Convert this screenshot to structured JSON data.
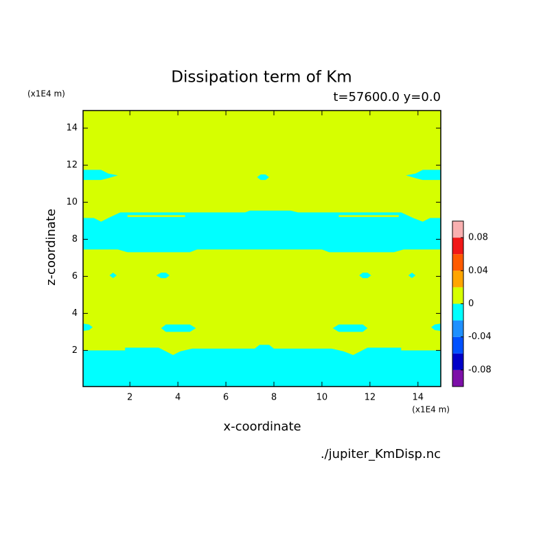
{
  "chart_data": {
    "type": "contour",
    "title": "Dissipation term of Km",
    "subtitle": "t=57600.0 y=0.0",
    "x_label": "x-coordinate",
    "y_label": "z-coordinate",
    "x_unit": "(x1E4 m)",
    "y_unit": "(x1E4 m)",
    "source": "./jupiter_KmDisp.nc",
    "xlim": [
      0.05,
      14.95
    ],
    "ylim": [
      0.05,
      14.95
    ],
    "xticks": [
      2,
      4,
      6,
      8,
      10,
      12,
      14
    ],
    "yticks": [
      2,
      4,
      6,
      8,
      10,
      12,
      14
    ],
    "colorbar": {
      "levels": [
        -0.1,
        -0.08,
        -0.06,
        -0.04,
        -0.02,
        0,
        0.02,
        0.04,
        0.06,
        0.08,
        0.1
      ],
      "colors": [
        "#7d10a8",
        "#0000c8",
        "#0050ff",
        "#1e90ff",
        "#00ffff",
        "#d6ff00",
        "#ffa500",
        "#ff5a00",
        "#f01818",
        "#f9b0b0"
      ],
      "ticks": [
        -0.08,
        -0.04,
        0,
        0.04,
        0.08
      ]
    },
    "regions": [
      {
        "range": [
          0,
          0.02
        ],
        "x": [
          0.05,
          14.95,
          14.95,
          0.05
        ],
        "y": [
          0.05,
          0.05,
          14.95,
          14.95
        ]
      },
      {
        "range": [
          -0.02,
          0
        ],
        "x": [
          0.05,
          0.05,
          1.8,
          1.8,
          3.2,
          3.5,
          3.8,
          4.1,
          4.6,
          7.2,
          7.4,
          7.8,
          8.0,
          10.4,
          10.9,
          11.3,
          11.6,
          11.9,
          13.3,
          13.3,
          14.95,
          14.95
        ],
        "y": [
          0.05,
          2.0,
          2.0,
          2.15,
          2.15,
          1.95,
          1.75,
          1.95,
          2.1,
          2.1,
          2.3,
          2.3,
          2.1,
          2.1,
          1.95,
          1.75,
          1.95,
          2.15,
          2.15,
          2.0,
          2.0,
          0.05
        ]
      },
      {
        "range": [
          -0.02,
          0
        ],
        "x": [
          0.05,
          0.3,
          0.45,
          0.3,
          0.05
        ],
        "y": [
          3.05,
          3.1,
          3.25,
          3.4,
          3.45
        ]
      },
      {
        "range": [
          -0.02,
          0
        ],
        "x": [
          3.3,
          3.5,
          4.5,
          4.75,
          4.5,
          3.5
        ],
        "y": [
          3.2,
          3.4,
          3.4,
          3.2,
          3.0,
          3.0
        ]
      },
      {
        "range": [
          -0.02,
          0
        ],
        "x": [
          10.45,
          10.7,
          11.7,
          11.9,
          11.7,
          10.7
        ],
        "y": [
          3.2,
          3.4,
          3.4,
          3.2,
          3.0,
          3.0
        ]
      },
      {
        "range": [
          -0.02,
          0
        ],
        "x": [
          14.95,
          14.7,
          14.55,
          14.7,
          14.95
        ],
        "y": [
          3.05,
          3.1,
          3.25,
          3.4,
          3.45
        ]
      },
      {
        "range": [
          -0.02,
          0
        ],
        "x": [
          1.15,
          1.3,
          1.45,
          1.3
        ],
        "y": [
          6.05,
          6.2,
          6.05,
          5.9
        ]
      },
      {
        "range": [
          -0.02,
          0
        ],
        "x": [
          3.1,
          3.3,
          3.5,
          3.65,
          3.5,
          3.3
        ],
        "y": [
          6.05,
          6.2,
          6.2,
          6.05,
          5.9,
          5.9
        ]
      },
      {
        "range": [
          -0.02,
          0
        ],
        "x": [
          11.55,
          11.7,
          11.9,
          12.05,
          11.9,
          11.7
        ],
        "y": [
          6.05,
          6.2,
          6.2,
          6.05,
          5.9,
          5.9
        ]
      },
      {
        "range": [
          -0.02,
          0
        ],
        "x": [
          13.6,
          13.75,
          13.9,
          13.75
        ],
        "y": [
          6.05,
          6.2,
          6.05,
          5.9
        ]
      },
      {
        "range": [
          -0.02,
          0
        ],
        "x": [
          0.05,
          1.5,
          1.9,
          4.5,
          4.8,
          10.0,
          10.3,
          13.0,
          13.4,
          14.95,
          14.95,
          14.5,
          14.2,
          13.8,
          13.3,
          9.0,
          8.7,
          7.0,
          6.8,
          1.6,
          1.1,
          0.8,
          0.5,
          0.05
        ],
        "y": [
          7.45,
          7.45,
          7.3,
          7.3,
          7.45,
          7.45,
          7.3,
          7.3,
          7.45,
          7.45,
          9.15,
          9.15,
          8.95,
          9.15,
          9.45,
          9.45,
          9.55,
          9.55,
          9.45,
          9.45,
          9.15,
          8.95,
          9.15,
          9.15
        ]
      },
      {
        "range": [
          0,
          0.02
        ],
        "x": [
          1.9,
          4.3,
          4.3,
          1.9
        ],
        "y": [
          9.2,
          9.2,
          9.3,
          9.3
        ]
      },
      {
        "range": [
          0,
          0.02
        ],
        "x": [
          10.7,
          13.2,
          13.2,
          10.7
        ],
        "y": [
          9.2,
          9.2,
          9.3,
          9.3
        ]
      },
      {
        "range": [
          -0.02,
          0
        ],
        "x": [
          0.05,
          0.8,
          1.1,
          1.5,
          1.1,
          0.8,
          0.05
        ],
        "y": [
          11.2,
          11.2,
          11.3,
          11.45,
          11.55,
          11.75,
          11.75
        ]
      },
      {
        "range": [
          -0.02,
          0
        ],
        "x": [
          7.3,
          7.45,
          7.65,
          7.8,
          7.65,
          7.45
        ],
        "y": [
          11.35,
          11.5,
          11.5,
          11.35,
          11.2,
          11.2
        ]
      },
      {
        "range": [
          -0.02,
          0
        ],
        "x": [
          14.95,
          14.2,
          13.9,
          13.5,
          13.9,
          14.2,
          14.95
        ],
        "y": [
          11.2,
          11.2,
          11.3,
          11.45,
          11.55,
          11.75,
          11.75
        ]
      }
    ]
  }
}
